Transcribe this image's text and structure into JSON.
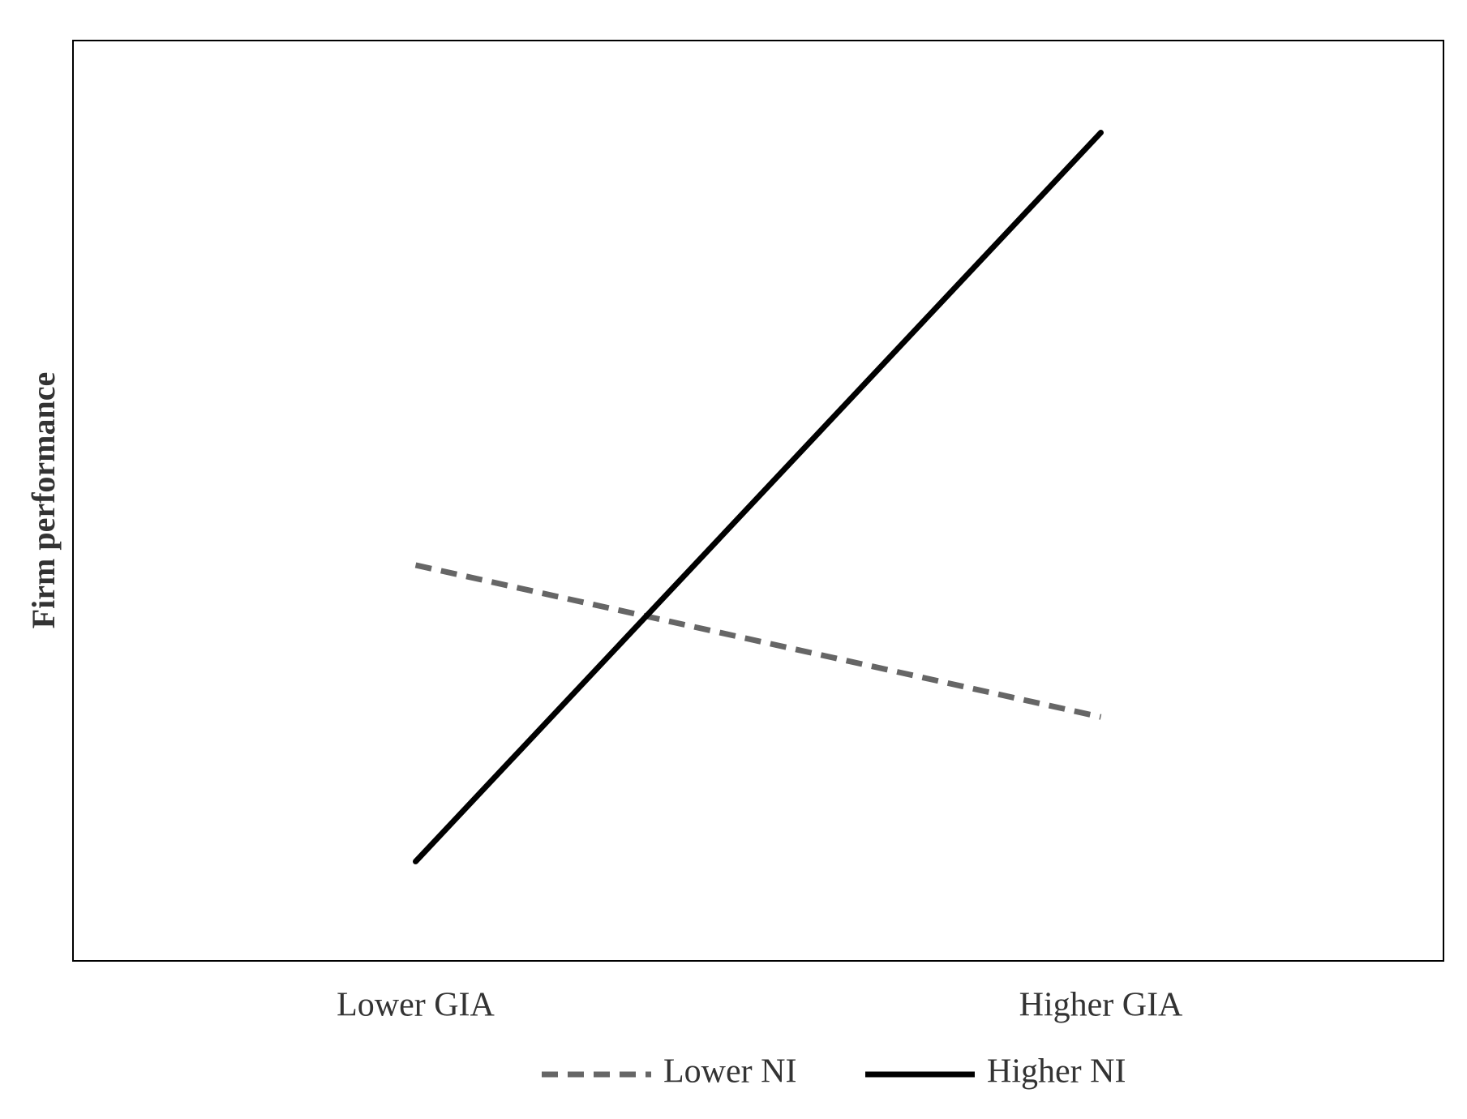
{
  "chart_data": {
    "type": "line",
    "y_label": "Firm performance",
    "categories": [
      "Lower GIA",
      "Higher GIA"
    ],
    "series": [
      {
        "name": "Lower NI",
        "color": "#666666",
        "dashed": true,
        "values": [
          0.43,
          0.265
        ]
      },
      {
        "name": "Higher NI",
        "color": "#000000",
        "dashed": false,
        "values": [
          0.108,
          0.9
        ]
      }
    ],
    "ylim": [
      0,
      1
    ],
    "legend": "bottom"
  }
}
